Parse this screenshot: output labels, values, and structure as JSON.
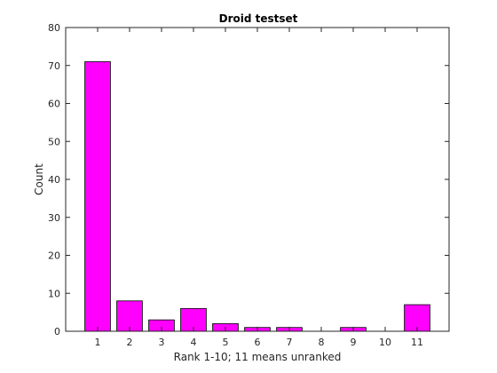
{
  "chart_data": {
    "type": "bar",
    "title": "Droid testset",
    "xlabel": "Rank 1-10; 11 means unranked",
    "ylabel": "Count",
    "categories": [
      "1",
      "2",
      "3",
      "4",
      "5",
      "6",
      "7",
      "8",
      "9",
      "10",
      "11"
    ],
    "values": [
      71,
      8,
      3,
      6,
      2,
      1,
      1,
      0,
      1,
      0,
      7
    ],
    "ylim": [
      0,
      80
    ],
    "yticks": [
      0,
      10,
      20,
      30,
      40,
      50,
      60,
      70,
      80
    ],
    "grid": false,
    "legend": "none",
    "bar_color": "#ff00ff",
    "bar_edge_color": "#000000"
  }
}
